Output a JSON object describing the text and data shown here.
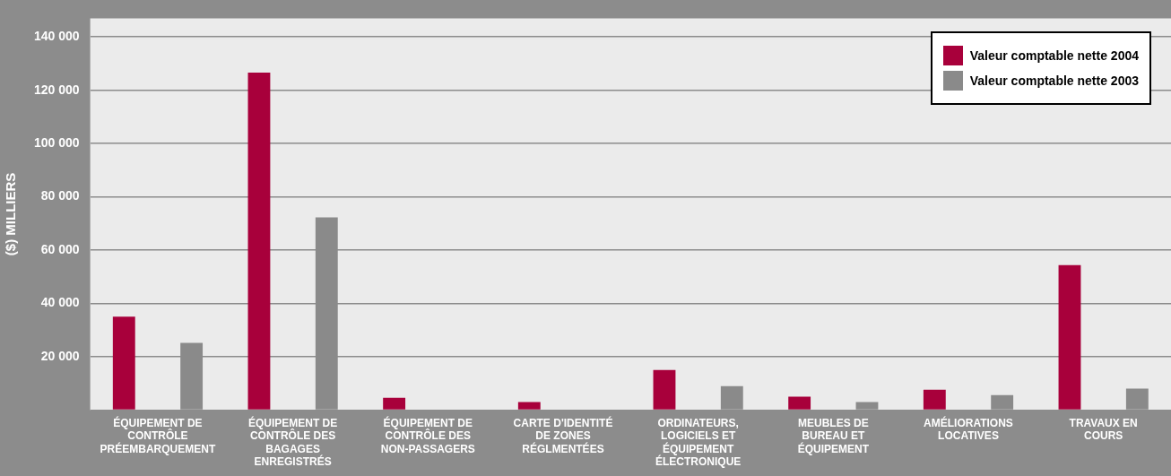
{
  "chart_data": {
    "type": "bar",
    "ylabel": "($) MILLIERS",
    "categories": [
      "ÉQUIPEMENT DE CONTRÔLE PRÉEMBARQUEMENT",
      "ÉQUIPEMENT DE CONTRÔLE DES BAGAGES ENREGISTRÉS",
      "ÉQUIPEMENT DE CONTRÔLE DES NON-PASSAGERS",
      "CARTE D'IDENTITÉ DE ZONES RÉGLMENTÉES",
      "ORDINATEURS, LOGICIELS ET ÉQUIPEMENT ÉLECTRONIQUE",
      "MEUBLES DE BUREAU ET ÉQUIPEMENT",
      "AMÉLIORATIONS LOCATIVES",
      "TRAVAUX EN COURS"
    ],
    "series": [
      {
        "name": "Valeur comptable nette 2004",
        "color": "#a8003b",
        "values": [
          35000,
          126600,
          4600,
          3000,
          15000,
          5000,
          7600,
          54400
        ]
      },
      {
        "name": "Valeur comptable nette 2003",
        "color": "#8a8a8a",
        "values": [
          25200,
          72300,
          null,
          null,
          9000,
          3000,
          5600,
          8000
        ]
      }
    ],
    "ylim": [
      0,
      147000
    ],
    "yticks": [
      {
        "value": 0,
        "label": null
      },
      {
        "value": 20000,
        "label": "20 000"
      },
      {
        "value": 40000,
        "label": "40 000"
      },
      {
        "value": 60000,
        "label": "60 000"
      },
      {
        "value": 80000,
        "label": "80 000"
      },
      {
        "value": 100000,
        "label": "100 000"
      },
      {
        "value": 120000,
        "label": "120 000"
      },
      {
        "value": 140000,
        "label": "140 000"
      }
    ],
    "grid": "y",
    "legend": "top right"
  }
}
